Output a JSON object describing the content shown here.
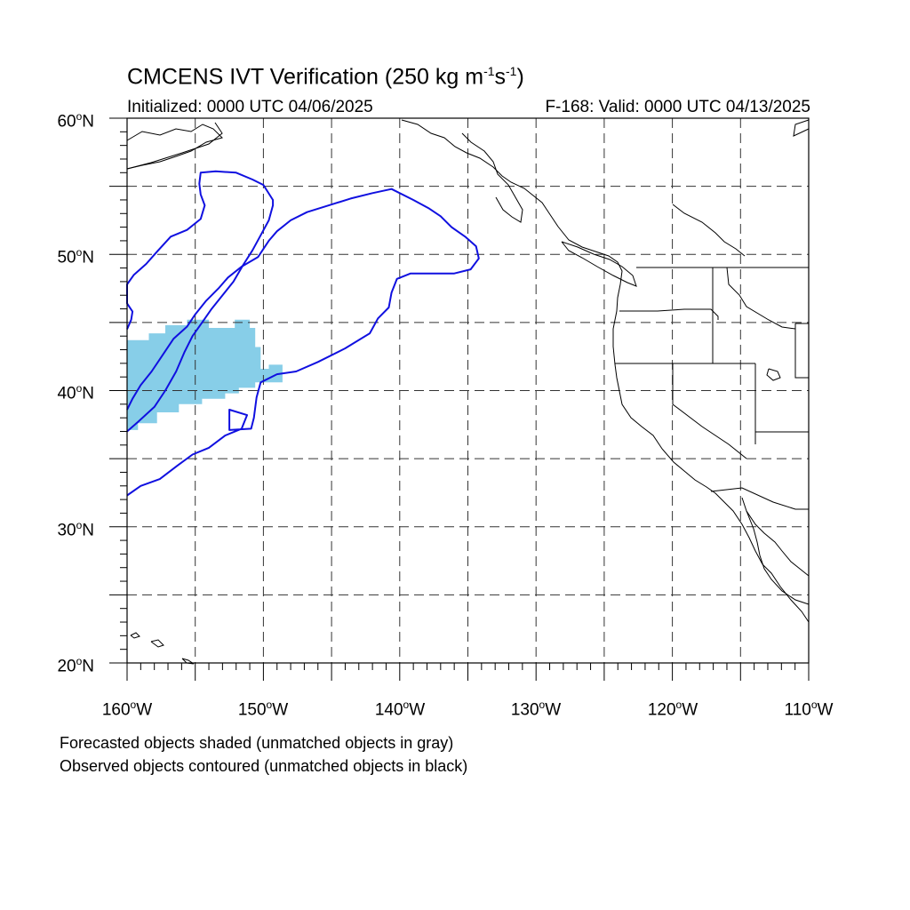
{
  "title": {
    "main": "CMCENS IVT Verification (250 kg m",
    "exp1": "-1",
    "mid": "s",
    "exp2": "-1",
    "end": ")"
  },
  "subtitle_left": "Initialized: 0000 UTC 04/06/2025",
  "subtitle_right": "F-168: Valid: 0000 UTC 04/13/2025",
  "lat_labels": [
    "60",
    "50",
    "40",
    "30",
    "20"
  ],
  "lat_suffix": "N",
  "lon_labels": [
    "160",
    "150",
    "140",
    "130",
    "120",
    "110"
  ],
  "lon_suffix": "W",
  "degree_mark": "o",
  "map_extent": {
    "lon_min": -160,
    "lon_max": -110,
    "lat_min": 20,
    "lat_max": 60
  },
  "colors": {
    "forecast_shading": "#87CEE8",
    "observed_contour": "#1010E0",
    "coastline": "#000000",
    "gridline": "#333333"
  },
  "forecast_object_vertices_lonlat": [
    [
      -160,
      37.1
    ],
    [
      -159.2,
      37.1
    ],
    [
      -159.2,
      37.6
    ],
    [
      -157.8,
      37.6
    ],
    [
      -157.8,
      38.4
    ],
    [
      -156.2,
      38.4
    ],
    [
      -156.2,
      39.0
    ],
    [
      -154.5,
      39.0
    ],
    [
      -154.5,
      39.4
    ],
    [
      -152.8,
      39.4
    ],
    [
      -152.8,
      39.8
    ],
    [
      -151.8,
      39.8
    ],
    [
      -151.8,
      40.2
    ],
    [
      -150.6,
      40.2
    ],
    [
      -150.6,
      40.6
    ],
    [
      -148.6,
      40.6
    ],
    [
      -148.6,
      41.9
    ],
    [
      -149.6,
      41.9
    ],
    [
      -149.6,
      41.6
    ],
    [
      -150.2,
      41.6
    ],
    [
      -150.2,
      43.2
    ],
    [
      -150.6,
      43.2
    ],
    [
      -150.6,
      44.6
    ],
    [
      -151.0,
      44.6
    ],
    [
      -151.0,
      45.2
    ],
    [
      -152.1,
      45.2
    ],
    [
      -152.1,
      44.6
    ],
    [
      -154.0,
      44.6
    ],
    [
      -154.0,
      45.2
    ],
    [
      -155.6,
      45.2
    ],
    [
      -155.6,
      44.8
    ],
    [
      -157.2,
      44.8
    ],
    [
      -157.2,
      44.2
    ],
    [
      -158.4,
      44.2
    ],
    [
      -158.4,
      43.7
    ],
    [
      -160,
      43.7
    ]
  ],
  "observed_object_1_vertices_lonlat": [
    [
      -160,
      37.0
    ],
    [
      -159.2,
      37.7
    ],
    [
      -158.0,
      38.8
    ],
    [
      -157.2,
      40.0
    ],
    [
      -156.4,
      41.4
    ],
    [
      -155.8,
      42.8
    ],
    [
      -155.2,
      44.0
    ],
    [
      -154.5,
      45.0
    ],
    [
      -153.8,
      46.0
    ],
    [
      -153.0,
      47.0
    ],
    [
      -152.2,
      48.0
    ],
    [
      -151.5,
      49.2
    ],
    [
      -150.8,
      50.3
    ],
    [
      -150.2,
      51.4
    ],
    [
      -149.6,
      52.5
    ],
    [
      -149.3,
      53.6
    ],
    [
      -149.3,
      54.0
    ],
    [
      -150.0,
      55.1
    ],
    [
      -150.8,
      55.5
    ],
    [
      -152.0,
      56.0
    ],
    [
      -153.5,
      56.1
    ],
    [
      -154.6,
      56.0
    ],
    [
      -154.7,
      55.2
    ],
    [
      -154.6,
      54.4
    ],
    [
      -154.3,
      53.6
    ],
    [
      -154.6,
      52.6
    ],
    [
      -155.6,
      51.8
    ],
    [
      -156.8,
      51.3
    ],
    [
      -157.8,
      50.2
    ],
    [
      -158.6,
      49.3
    ],
    [
      -159.5,
      48.5
    ],
    [
      -160,
      47.8
    ],
    [
      -160,
      46.4
    ],
    [
      -159.6,
      45.8
    ],
    [
      -159.7,
      45.2
    ],
    [
      -160,
      44.5
    ]
  ],
  "observed_object_2_vertices_lonlat": [
    [
      -160,
      32.3
    ],
    [
      -159.0,
      33.0
    ],
    [
      -157.6,
      33.5
    ],
    [
      -156.3,
      34.5
    ],
    [
      -155.2,
      35.3
    ],
    [
      -154.0,
      35.8
    ],
    [
      -152.8,
      36.7
    ],
    [
      -151.6,
      37.2
    ],
    [
      -151.2,
      38.2
    ],
    [
      -152.5,
      38.6
    ],
    [
      -152.5,
      37.1
    ],
    [
      -150.9,
      37.2
    ],
    [
      -150.7,
      38.0
    ],
    [
      -150.5,
      39.5
    ],
    [
      -150.2,
      40.6
    ],
    [
      -149.0,
      41.2
    ],
    [
      -147.6,
      41.4
    ],
    [
      -146.0,
      42.1
    ],
    [
      -144.0,
      43.1
    ],
    [
      -142.2,
      44.2
    ],
    [
      -141.6,
      45.3
    ],
    [
      -140.8,
      46.1
    ],
    [
      -140.6,
      47.2
    ],
    [
      -140.2,
      48.2
    ],
    [
      -139.2,
      48.6
    ],
    [
      -137.6,
      48.6
    ],
    [
      -136.0,
      48.6
    ],
    [
      -134.8,
      48.9
    ],
    [
      -134.2,
      49.7
    ],
    [
      -134.4,
      50.6
    ],
    [
      -135.2,
      51.3
    ],
    [
      -136.2,
      52.0
    ],
    [
      -137.0,
      52.8
    ],
    [
      -137.9,
      53.4
    ],
    [
      -139.0,
      54.0
    ],
    [
      -140.6,
      54.8
    ],
    [
      -142.0,
      54.5
    ],
    [
      -143.6,
      54.1
    ],
    [
      -145.2,
      53.6
    ],
    [
      -146.8,
      53.1
    ],
    [
      -148.0,
      52.5
    ],
    [
      -149.0,
      51.7
    ],
    [
      -149.6,
      51.0
    ],
    [
      -150.4,
      49.8
    ],
    [
      -151.6,
      49.1
    ],
    [
      -152.6,
      48.3
    ],
    [
      -153.3,
      47.5
    ],
    [
      -154.2,
      46.6
    ],
    [
      -155.0,
      45.6
    ],
    [
      -155.6,
      44.7
    ],
    [
      -156.6,
      43.8
    ],
    [
      -157.4,
      42.6
    ],
    [
      -158.2,
      41.4
    ],
    [
      -159.0,
      40.4
    ],
    [
      -159.6,
      39.4
    ],
    [
      -160,
      38.6
    ]
  ],
  "notes": [
    "Forecasted objects shaded (unmatched objects in gray)",
    "Observed objects contoured (unmatched objects in black)"
  ]
}
